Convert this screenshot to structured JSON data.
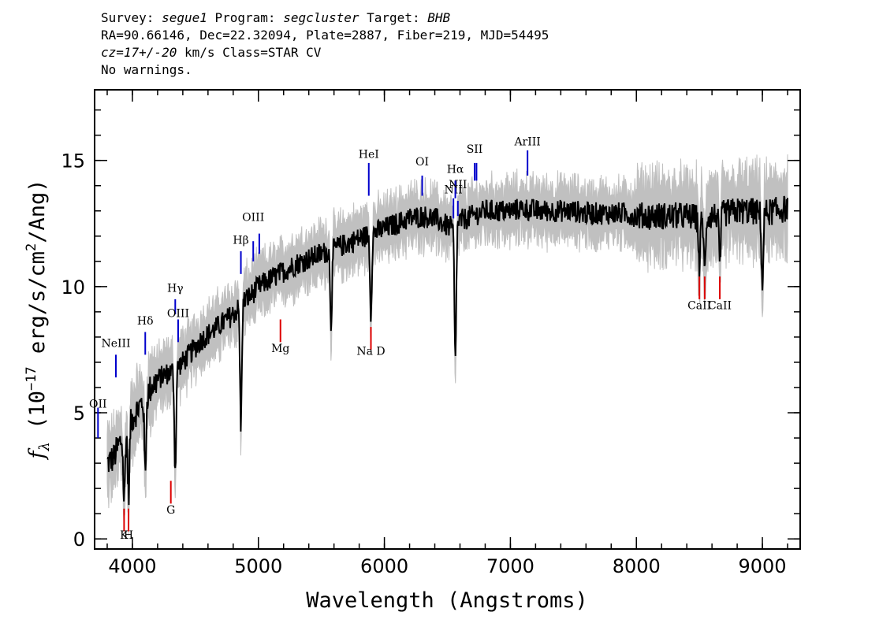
{
  "header": {
    "line1": {
      "survey_label": "Survey: ",
      "survey": "segue1",
      "program_label": " Program: ",
      "program": "segcluster",
      "target_label": " Target: ",
      "target": "BHB"
    },
    "line2": "RA=90.66146, Dec=22.32094, Plate=2887, Fiber=219, MJD=54495",
    "line3": {
      "cz": "cz=17+/-20",
      "rest": " km/s Class=STAR CV"
    },
    "line4": "No warnings."
  },
  "chart_data": {
    "type": "line",
    "xlabel": "Wavelength (Angstroms)",
    "ylabel": "f_λ (10^-17 erg/s/cm^2/Ang)",
    "ylabel_parts": {
      "f": "f",
      "lambda": "λ",
      "open": " (10",
      "exp17": "−17",
      "mid": " erg/s/cm",
      "exp2": "2",
      "close": "/Ang)"
    },
    "xlim": [
      3700,
      9300
    ],
    "ylim": [
      -0.4,
      17.8
    ],
    "x_ticks": [
      4000,
      5000,
      6000,
      7000,
      8000,
      9000
    ],
    "y_ticks": [
      0,
      5,
      10,
      15
    ],
    "series": [
      {
        "color": "#000000",
        "x": [
          3800,
          3850,
          3900,
          3950,
          4000,
          4050,
          4100,
          4150,
          4200,
          4250,
          4300,
          4350,
          4400,
          4450,
          4500,
          4550,
          4600,
          4650,
          4700,
          4750,
          4800,
          4850,
          4900,
          4950,
          5000,
          5100,
          5200,
          5300,
          5400,
          5500,
          5600,
          5700,
          5800,
          5900,
          6000,
          6100,
          6200,
          6300,
          6400,
          6500,
          6550,
          6600,
          6650,
          6700,
          6800,
          6900,
          7000,
          7100,
          7200,
          7300,
          7400,
          7500,
          7600,
          7700,
          7800,
          7900,
          8000,
          8100,
          8200,
          8300,
          8400,
          8500,
          8600,
          8700,
          8800,
          8850,
          8900,
          9000,
          9100,
          9200
        ],
        "y": [
          3.0,
          3.2,
          3.8,
          4.2,
          4.8,
          5.2,
          5.6,
          6.0,
          6.3,
          6.5,
          6.6,
          6.8,
          7.0,
          7.3,
          7.6,
          7.9,
          8.1,
          8.3,
          8.5,
          8.7,
          8.9,
          9.2,
          9.5,
          9.7,
          10.0,
          10.3,
          10.6,
          10.9,
          11.1,
          11.3,
          11.5,
          11.7,
          11.9,
          12.1,
          12.3,
          12.5,
          12.7,
          12.8,
          12.7,
          12.4,
          12.3,
          12.6,
          12.7,
          12.8,
          13.0,
          13.0,
          13.0,
          13.1,
          13.0,
          13.0,
          13.0,
          13.0,
          12.9,
          12.9,
          12.9,
          12.9,
          12.8,
          12.8,
          12.8,
          12.8,
          12.8,
          12.7,
          12.8,
          12.9,
          13.0,
          13.0,
          13.0,
          12.9,
          13.0,
          13.1
        ]
      }
    ],
    "absorption_dips": [
      {
        "x": 3934,
        "y": 1.5
      },
      {
        "x": 3970,
        "y": 1.8
      },
      {
        "x": 4102,
        "y": 2.6
      },
      {
        "x": 4340,
        "y": 2.7
      },
      {
        "x": 4861,
        "y": 4.5
      },
      {
        "x": 5577,
        "y": 8.6
      },
      {
        "x": 5893,
        "y": 9.0
      },
      {
        "x": 6563,
        "y": 7.0
      },
      {
        "x": 8500,
        "y": 10.8
      },
      {
        "x": 8542,
        "y": 10.5
      },
      {
        "x": 8662,
        "y": 10.8
      },
      {
        "x": 9000,
        "y": 10.0
      }
    ],
    "emission_lines": [
      {
        "label": "OII",
        "x": 3727,
        "y1": 4.0,
        "y2": 5.2,
        "label_y": 5.2
      },
      {
        "label": "NeIII",
        "x": 3869,
        "y1": 6.4,
        "y2": 7.3,
        "label_y": 7.6
      },
      {
        "label": "Hδ",
        "x": 4102,
        "y1": 7.3,
        "y2": 8.2,
        "label_y": 8.5
      },
      {
        "label": "Hγ",
        "x": 4340,
        "y1": 8.9,
        "y2": 9.5,
        "label_y": 9.8
      },
      {
        "label": "OIII",
        "x": 4363,
        "y1": 7.8,
        "y2": 8.7,
        "label_y": 8.8
      },
      {
        "label": "Hβ",
        "x": 4861,
        "y1": 10.5,
        "y2": 11.4,
        "label_y": 11.7
      },
      {
        "label": "OIII",
        "x": 4959,
        "y1": 11.0,
        "y2": 11.8,
        "label_y": 12.6
      },
      {
        "label": "OIII",
        "x": 5007,
        "y1": 11.3,
        "y2": 12.1,
        "label_y": 12.6
      },
      {
        "label": "HeI",
        "x": 5876,
        "y1": 13.6,
        "y2": 14.9,
        "label_y": 15.1
      },
      {
        "label": "OI",
        "x": 6300,
        "y1": 13.6,
        "y2": 14.4,
        "label_y": 14.8
      },
      {
        "label": "NII",
        "x": 6548,
        "y1": 12.7,
        "y2": 13.5,
        "label_y": 13.7
      },
      {
        "label": "Hα",
        "x": 6563,
        "y1": 13.5,
        "y2": 14.2,
        "label_y": 14.5
      },
      {
        "label": "NII",
        "x": 6583,
        "y1": 12.8,
        "y2": 13.4,
        "label_y": 13.9
      },
      {
        "label": "SII",
        "x": 6716,
        "y1": 14.2,
        "y2": 14.9,
        "label_y": 15.3
      },
      {
        "label": "SII",
        "x": 6731,
        "y1": 14.2,
        "y2": 14.9,
        "label_y": 15.3
      },
      {
        "label": "ArIII",
        "x": 7136,
        "y1": 14.4,
        "y2": 15.4,
        "label_y": 15.6
      }
    ],
    "absorption_lines": [
      {
        "label": "K",
        "x": 3934,
        "y1": 0.3,
        "y2": 1.2,
        "label_y": 0.0
      },
      {
        "label": "H",
        "x": 3969,
        "y1": 0.3,
        "y2": 1.2,
        "label_y": 0.0
      },
      {
        "label": "G",
        "x": 4305,
        "y1": 1.4,
        "y2": 2.3,
        "label_y": 1.0
      },
      {
        "label": "Mg",
        "x": 5175,
        "y1": 7.8,
        "y2": 8.7,
        "label_y": 7.4
      },
      {
        "label": "Na D",
        "x": 5893,
        "y1": 7.5,
        "y2": 8.4,
        "label_y": 7.3
      },
      {
        "label": "CaII",
        "x": 8500,
        "y1": 9.5,
        "y2": 10.4,
        "label_y": 9.1
      },
      {
        "label": "CaII",
        "x": 8542,
        "y1": 9.5,
        "y2": 10.4,
        "label_y": 9.1
      },
      {
        "label": "CaII",
        "x": 8662,
        "y1": 9.5,
        "y2": 10.4,
        "label_y": 9.1
      }
    ],
    "colors": {
      "flux": "#000000",
      "error_band": "#c0c0c0",
      "emission": "#0000cc",
      "absorption": "#dd0000"
    },
    "grid": false,
    "legend": "none"
  }
}
